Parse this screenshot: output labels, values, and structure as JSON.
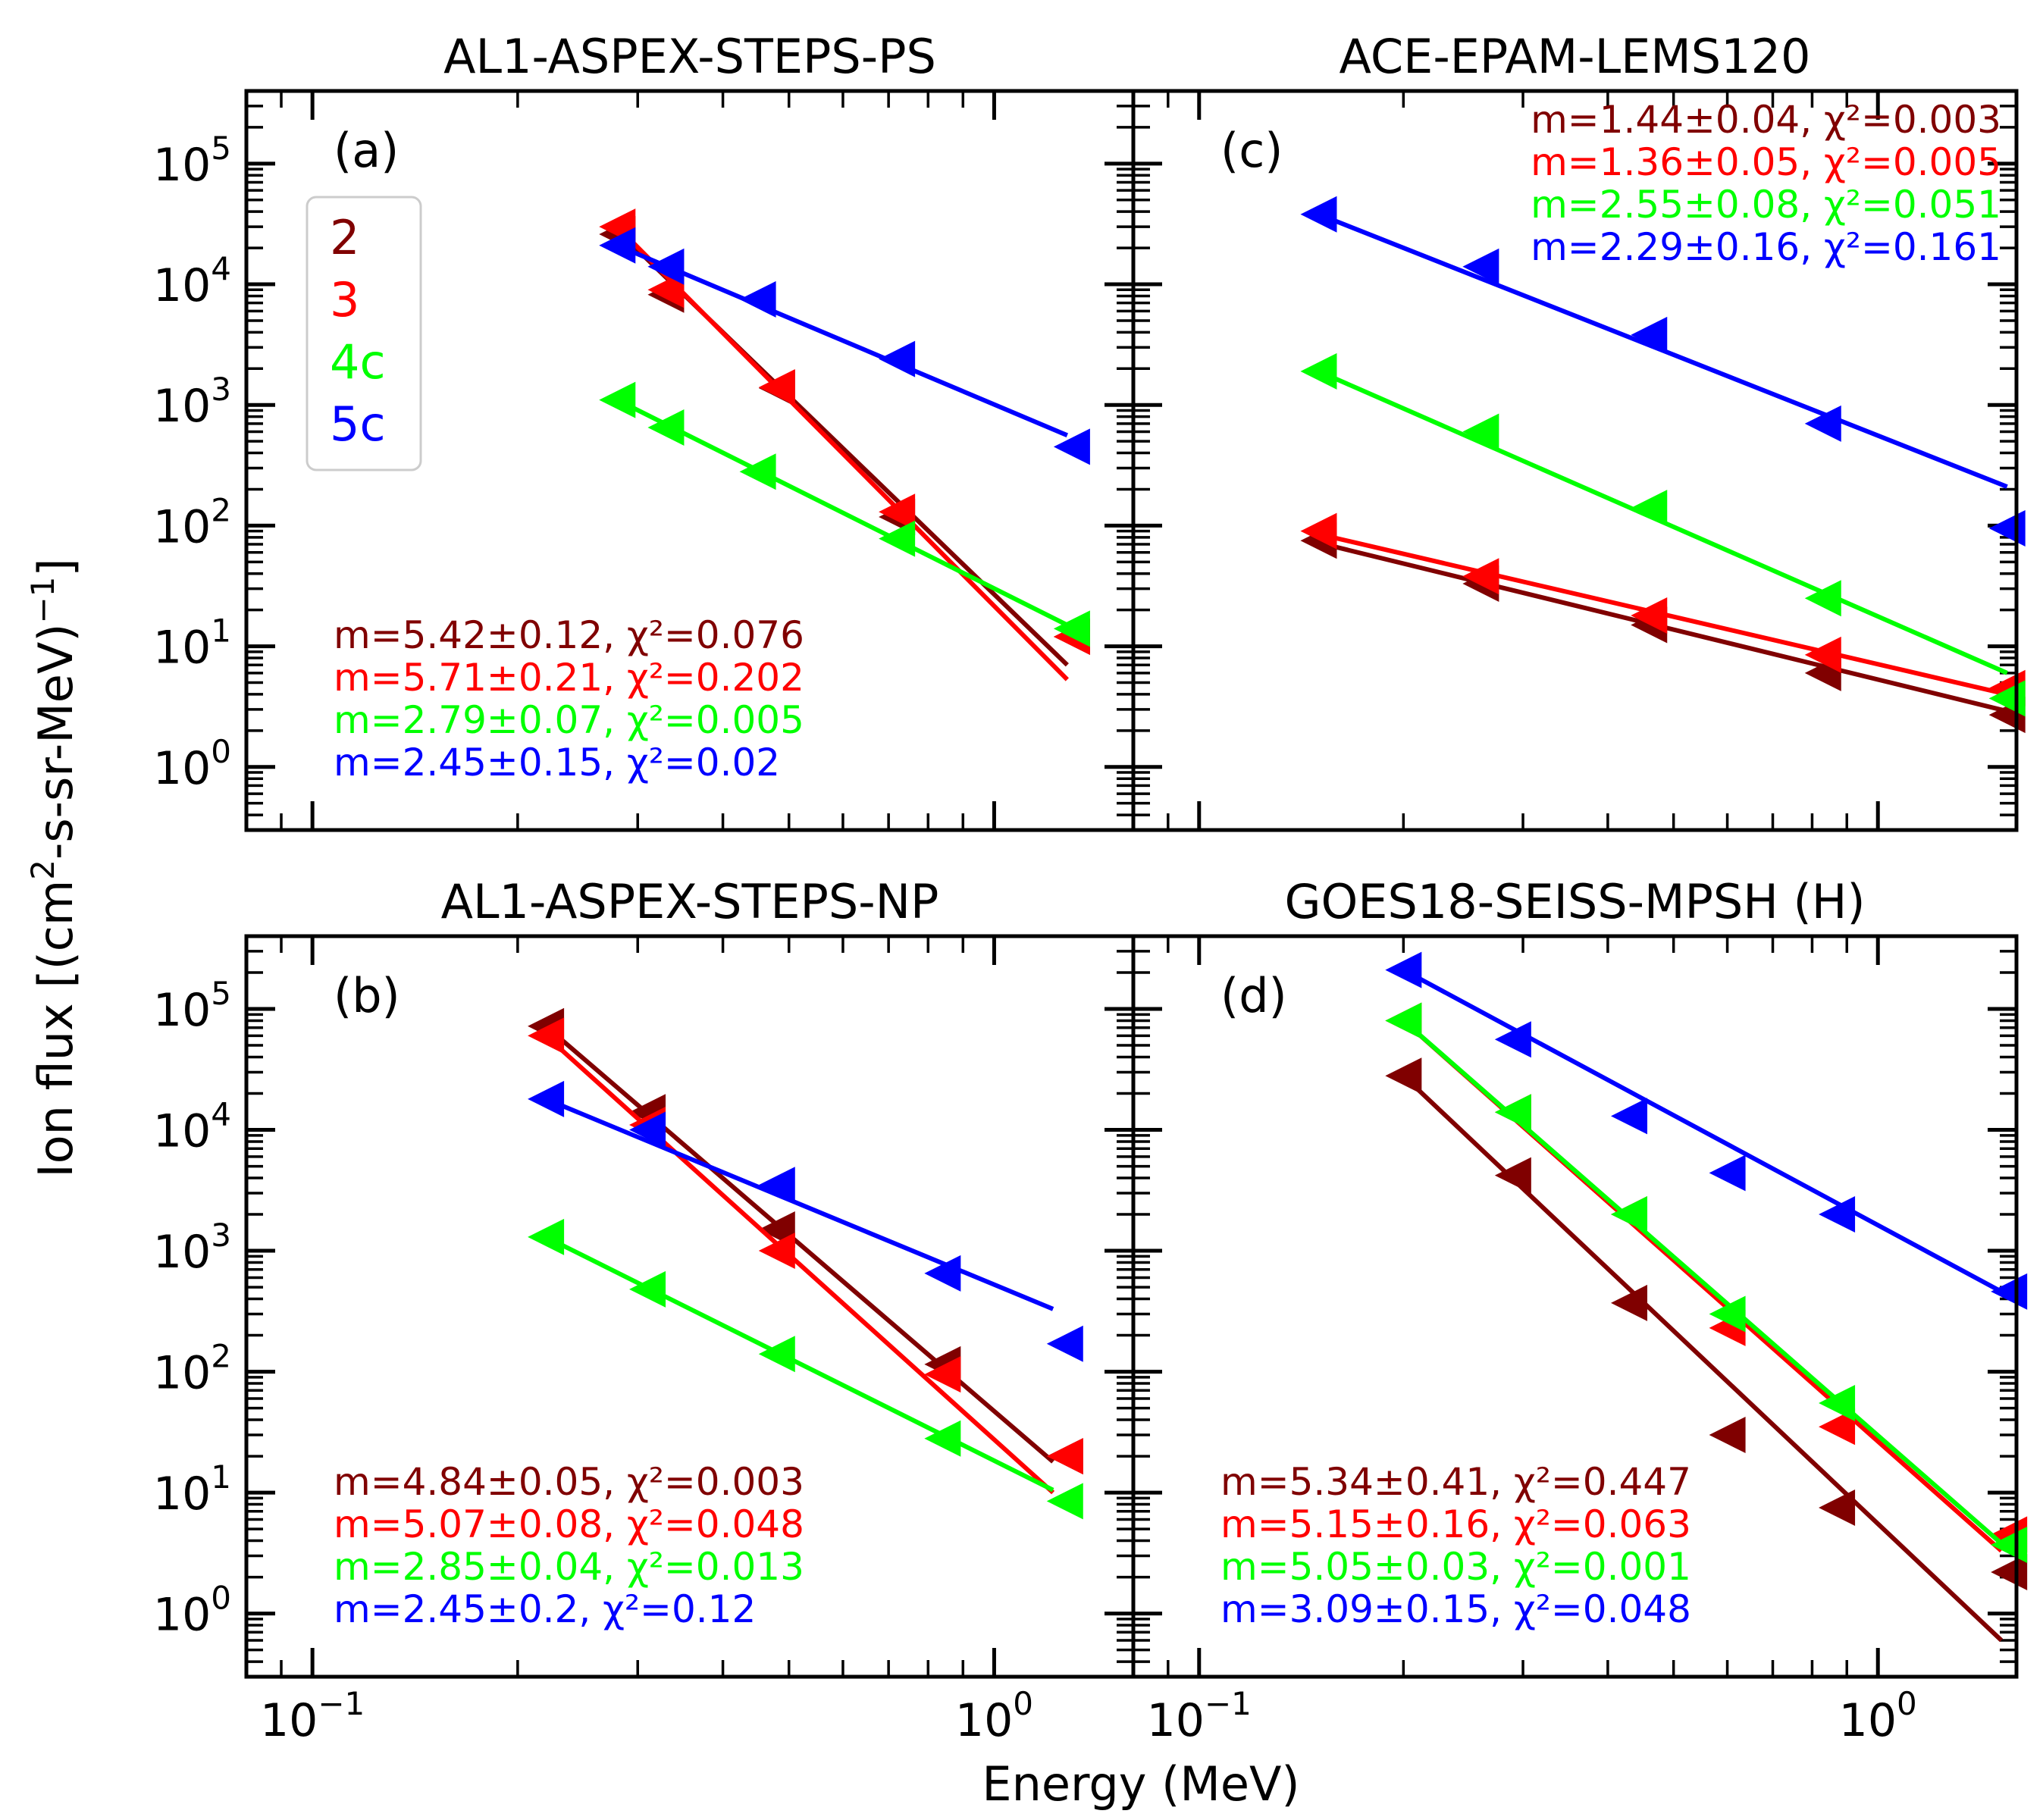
{
  "figure": {
    "xlabel": "Energy (MeV)",
    "ylabel": "Ion flux [(cm2-s-sr-MeV)-1]",
    "ylabel_parts": [
      "Ion flux [(cm",
      "2",
      "-s-sr-MeV)",
      "−1",
      "]"
    ]
  },
  "colors": {
    "2": "#800000",
    "3": "#ff0000",
    "4c": "#00ff00",
    "5c": "#0000ff"
  },
  "legend": {
    "placement": "upper-left of panel (a)",
    "entries": [
      {
        "label": "2",
        "color": "#800000"
      },
      {
        "label": "3",
        "color": "#ff0000"
      },
      {
        "label": "4c",
        "color": "#00ff00"
      },
      {
        "label": "5c",
        "color": "#0000ff"
      }
    ]
  },
  "chart_data": [
    {
      "type": "scatter",
      "marker": "left-pointing triangle with power-law fit line",
      "panel": "(a)",
      "title": "AL1-ASPEX-STEPS-PS",
      "xscale": "log",
      "yscale": "log",
      "xlim": [
        0.08,
        1.6
      ],
      "ylim": [
        0.3,
        400000
      ],
      "xticks": [
        "10^-1",
        "10^0"
      ],
      "yticks": [
        "10^0",
        "10^1",
        "10^2",
        "10^3",
        "10^4",
        "10^5"
      ],
      "series": [
        {
          "name": "2",
          "color": "#800000",
          "x": [
            0.28,
            0.33,
            0.48,
            0.72,
            1.3
          ],
          "y": [
            26000,
            8200,
            1380,
            118,
            12
          ],
          "fit_x": [
            0.28,
            1.28
          ],
          "fit_y": [
            28000,
            7
          ],
          "fit_text": "m=5.42±0.12, χ²=0.076"
        },
        {
          "name": "3",
          "color": "#ff0000",
          "x": [
            0.28,
            0.33,
            0.48,
            0.72,
            1.3
          ],
          "y": [
            30000,
            9000,
            1400,
            130,
            12
          ],
          "fit_x": [
            0.28,
            1.28
          ],
          "fit_y": [
            30000,
            5.3
          ],
          "fit_text": "m=5.71±0.21, χ²=0.202"
        },
        {
          "name": "4c",
          "color": "#00ff00",
          "x": [
            0.28,
            0.33,
            0.45,
            0.72,
            1.3
          ],
          "y": [
            1100,
            650,
            280,
            78,
            14
          ],
          "fit_x": [
            0.28,
            1.28
          ],
          "fit_y": [
            1100,
            15
          ],
          "fit_text": "m=2.79±0.07, χ²=0.005"
        },
        {
          "name": "5c",
          "color": "#0000ff",
          "x": [
            0.28,
            0.33,
            0.45,
            0.72,
            1.3
          ],
          "y": [
            21000,
            14000,
            7500,
            2400,
            450
          ],
          "fit_x": [
            0.28,
            1.28
          ],
          "fit_y": [
            21000,
            560
          ],
          "fit_text": "m=2.45±0.15, χ²=0.02"
        }
      ]
    },
    {
      "type": "scatter",
      "marker": "left-pointing triangle with power-law fit line",
      "panel": "(c)",
      "title": "ACE-EPAM-LEMS120",
      "xscale": "log",
      "yscale": "log",
      "xlim": [
        0.08,
        1.6
      ],
      "ylim": [
        0.3,
        400000
      ],
      "xticks": [
        "10^-1",
        "10^0"
      ],
      "yticks": [],
      "series": [
        {
          "name": "2",
          "color": "#800000",
          "x": [
            0.15,
            0.26,
            0.46,
            0.83,
            1.55
          ],
          "y": [
            75,
            33,
            15,
            6,
            2.7
          ],
          "fit_x": [
            0.15,
            1.55
          ],
          "fit_y": [
            72,
            2.9
          ],
          "fit_text": "m=1.44±0.04, χ²=0.003"
        },
        {
          "name": "3",
          "color": "#ff0000",
          "x": [
            0.15,
            0.26,
            0.46,
            0.83,
            1.55
          ],
          "y": [
            90,
            38,
            18,
            8.5,
            4.5
          ],
          "fit_x": [
            0.15,
            1.55
          ],
          "fit_y": [
            85,
            4
          ],
          "fit_text": "m=1.36±0.05, χ²=0.005"
        },
        {
          "name": "4c",
          "color": "#00ff00",
          "x": [
            0.15,
            0.26,
            0.46,
            0.83,
            1.55
          ],
          "y": [
            1900,
            600,
            140,
            25,
            3.7
          ],
          "fit_x": [
            0.15,
            1.55
          ],
          "fit_y": [
            1900,
            6
          ],
          "fit_text": "m=2.55±0.08, χ²=0.051"
        },
        {
          "name": "5c",
          "color": "#0000ff",
          "x": [
            0.15,
            0.26,
            0.46,
            0.83,
            1.55
          ],
          "y": [
            38000,
            14000,
            3800,
            700,
            95
          ],
          "fit_x": [
            0.15,
            1.55
          ],
          "fit_y": [
            38000,
            210
          ],
          "fit_text": "m=2.29±0.16, χ²=0.161"
        }
      ]
    },
    {
      "type": "scatter",
      "marker": "left-pointing triangle with power-law fit line",
      "panel": "(b)",
      "title": "AL1-ASPEX-STEPS-NP",
      "xscale": "log",
      "yscale": "log",
      "xlim": [
        0.08,
        1.6
      ],
      "ylim": [
        0.3,
        400000
      ],
      "xticks": [
        "10^-1",
        "10^0"
      ],
      "yticks": [
        "10^0",
        "10^1",
        "10^2",
        "10^3",
        "10^4",
        "10^5"
      ],
      "series": [
        {
          "name": "2",
          "color": "#800000",
          "x": [
            0.22,
            0.31,
            0.48,
            0.84,
            1.27
          ],
          "y": [
            72000,
            14000,
            1500,
            115,
            20
          ],
          "fit_x": [
            0.22,
            1.22
          ],
          "fit_y": [
            72000,
            18
          ],
          "fit_text": "m=4.84±0.05, χ²=0.003"
        },
        {
          "name": "3",
          "color": "#ff0000",
          "x": [
            0.22,
            0.31,
            0.48,
            0.84,
            1.27
          ],
          "y": [
            60000,
            11000,
            1000,
            95,
            20
          ],
          "fit_x": [
            0.22,
            1.22
          ],
          "fit_y": [
            60000,
            10
          ],
          "fit_text": "m=5.07±0.08, χ²=0.048"
        },
        {
          "name": "4c",
          "color": "#00ff00",
          "x": [
            0.22,
            0.31,
            0.48,
            0.84,
            1.27
          ],
          "y": [
            1300,
            480,
            140,
            28,
            8.5
          ],
          "fit_x": [
            0.22,
            1.22
          ],
          "fit_y": [
            1300,
            10.5
          ],
          "fit_text": "m=2.85±0.04, χ²=0.013"
        },
        {
          "name": "5c",
          "color": "#0000ff",
          "x": [
            0.22,
            0.31,
            0.48,
            0.84,
            1.27
          ],
          "y": [
            18000,
            10000,
            3500,
            650,
            170
          ],
          "fit_x": [
            0.22,
            1.22
          ],
          "fit_y": [
            18000,
            330
          ],
          "fit_text": "m=2.45±0.2, χ²=0.12"
        }
      ]
    },
    {
      "type": "scatter",
      "marker": "left-pointing triangle with power-law fit line",
      "panel": "(d)",
      "title": "GOES18-SEISS-MPSH (H)",
      "xscale": "log",
      "yscale": "log",
      "xlim": [
        0.08,
        1.6
      ],
      "ylim": [
        0.3,
        400000
      ],
      "xticks": [
        "10^-1",
        "10^0"
      ],
      "yticks": [],
      "series": [
        {
          "name": "2",
          "color": "#800000",
          "x": [
            0.2,
            0.29,
            0.43,
            0.6,
            0.87,
            1.56
          ],
          "y": [
            28000,
            4200,
            370,
            30,
            7.5,
            2.2
          ],
          "fit_x": [
            0.2,
            1.52
          ],
          "fit_y": [
            28000,
            0.6
          ],
          "fit_text": "m=5.34±0.41, χ²=0.447"
        },
        {
          "name": "3",
          "color": "#ff0000",
          "x": [
            0.2,
            0.29,
            0.43,
            0.6,
            0.87,
            1.56
          ],
          "y": [
            80000,
            14000,
            2000,
            230,
            35,
            4.5
          ],
          "fit_x": [
            0.2,
            1.52
          ],
          "fit_y": [
            80000,
            3.3
          ],
          "fit_text": "m=5.15±0.16, χ²=0.063"
        },
        {
          "name": "4c",
          "color": "#00ff00",
          "x": [
            0.2,
            0.29,
            0.43,
            0.6,
            0.87,
            1.56
          ],
          "y": [
            80000,
            14000,
            2000,
            300,
            55,
            3.7
          ],
          "fit_x": [
            0.2,
            1.52
          ],
          "fit_y": [
            80000,
            3.8
          ],
          "fit_text": "m=5.05±0.03, χ²=0.001"
        },
        {
          "name": "5c",
          "color": "#0000ff",
          "x": [
            0.2,
            0.29,
            0.43,
            0.6,
            0.87,
            1.56
          ],
          "y": [
            210000,
            56000,
            13000,
            4400,
            2000,
            460
          ],
          "fit_x": [
            0.2,
            1.52
          ],
          "fit_y": [
            210000,
            460
          ],
          "fit_text": "m=3.09±0.15, χ²=0.048"
        }
      ]
    }
  ]
}
